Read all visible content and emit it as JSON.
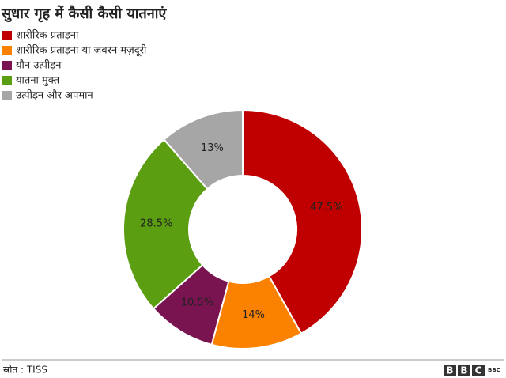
{
  "chart_data": {
    "type": "donut",
    "title": "सुधार गृह में कैसी कैसी यातनाएं",
    "categories": [
      "शारीरिक प्रताड़ना",
      "शारीरिक प्रताड़ना या जबरन मज़दूरी",
      "यौन उत्पीड़न",
      "यातना मुक्त",
      "उत्पीड़न और अपमान"
    ],
    "values": [
      47.5,
      14,
      10.5,
      28.5,
      13
    ],
    "value_labels": [
      "47.5%",
      "14%",
      "10.5%",
      "28.5%",
      "13%"
    ],
    "colors": [
      "#c00000",
      "#fb8200",
      "#7a1451",
      "#5b9e12",
      "#a6a6a6"
    ],
    "legend": "top-left"
  },
  "footer": {
    "source": "स्रोत : TISS",
    "logo": [
      "B",
      "B",
      "C"
    ],
    "logo_small": "BBC"
  }
}
